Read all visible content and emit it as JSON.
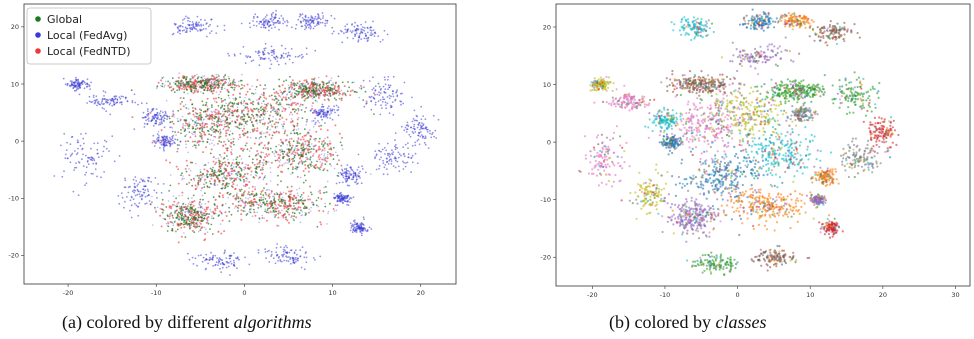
{
  "chart_data": [
    {
      "type": "scatter",
      "title": "",
      "xlabel": "",
      "ylabel": "",
      "xlim": [
        -25,
        24
      ],
      "ylim": [
        -25,
        24
      ],
      "xticks": [
        -20,
        -10,
        0,
        10,
        20
      ],
      "yticks": [
        -20,
        -10,
        0,
        10,
        20
      ],
      "xtick_labels": [
        "-20",
        "-10",
        "0",
        "10",
        "20"
      ],
      "ytick_labels": [
        "-20",
        "-10",
        "0",
        "10",
        "20"
      ],
      "grid": false,
      "legend": "top-left",
      "series": [
        {
          "name": "Global",
          "color": "#1b7a1b"
        },
        {
          "name": "Local (FedAvg)",
          "color": "#3a3ad6"
        },
        {
          "name": "Local (FedNTD)",
          "color": "#e83a3a"
        }
      ],
      "caption": {
        "prefix": "(a) colored by different ",
        "emphasis": "algorithms"
      }
    },
    {
      "type": "scatter",
      "title": "",
      "xlabel": "",
      "ylabel": "",
      "xlim": [
        -25,
        32
      ],
      "ylim": [
        -25,
        24
      ],
      "xticks": [
        -20,
        -10,
        0,
        10,
        20,
        30
      ],
      "yticks": [
        -20,
        -10,
        0,
        10,
        20
      ],
      "xtick_labels": [
        "-20",
        "-10",
        "0",
        "10",
        "20",
        "30"
      ],
      "ytick_labels": [
        "-20",
        "-10",
        "0",
        "10",
        "20"
      ],
      "grid": false,
      "colors": [
        "#e377c2",
        "#bcbd22",
        "#17becf",
        "#1f77b4",
        "#ff7f0e",
        "#9467bd",
        "#8c564b",
        "#2ca02c",
        "#d62728",
        "#7f7f7f"
      ],
      "caption": {
        "prefix": "(b) colored by ",
        "emphasis": "classes"
      }
    }
  ]
}
